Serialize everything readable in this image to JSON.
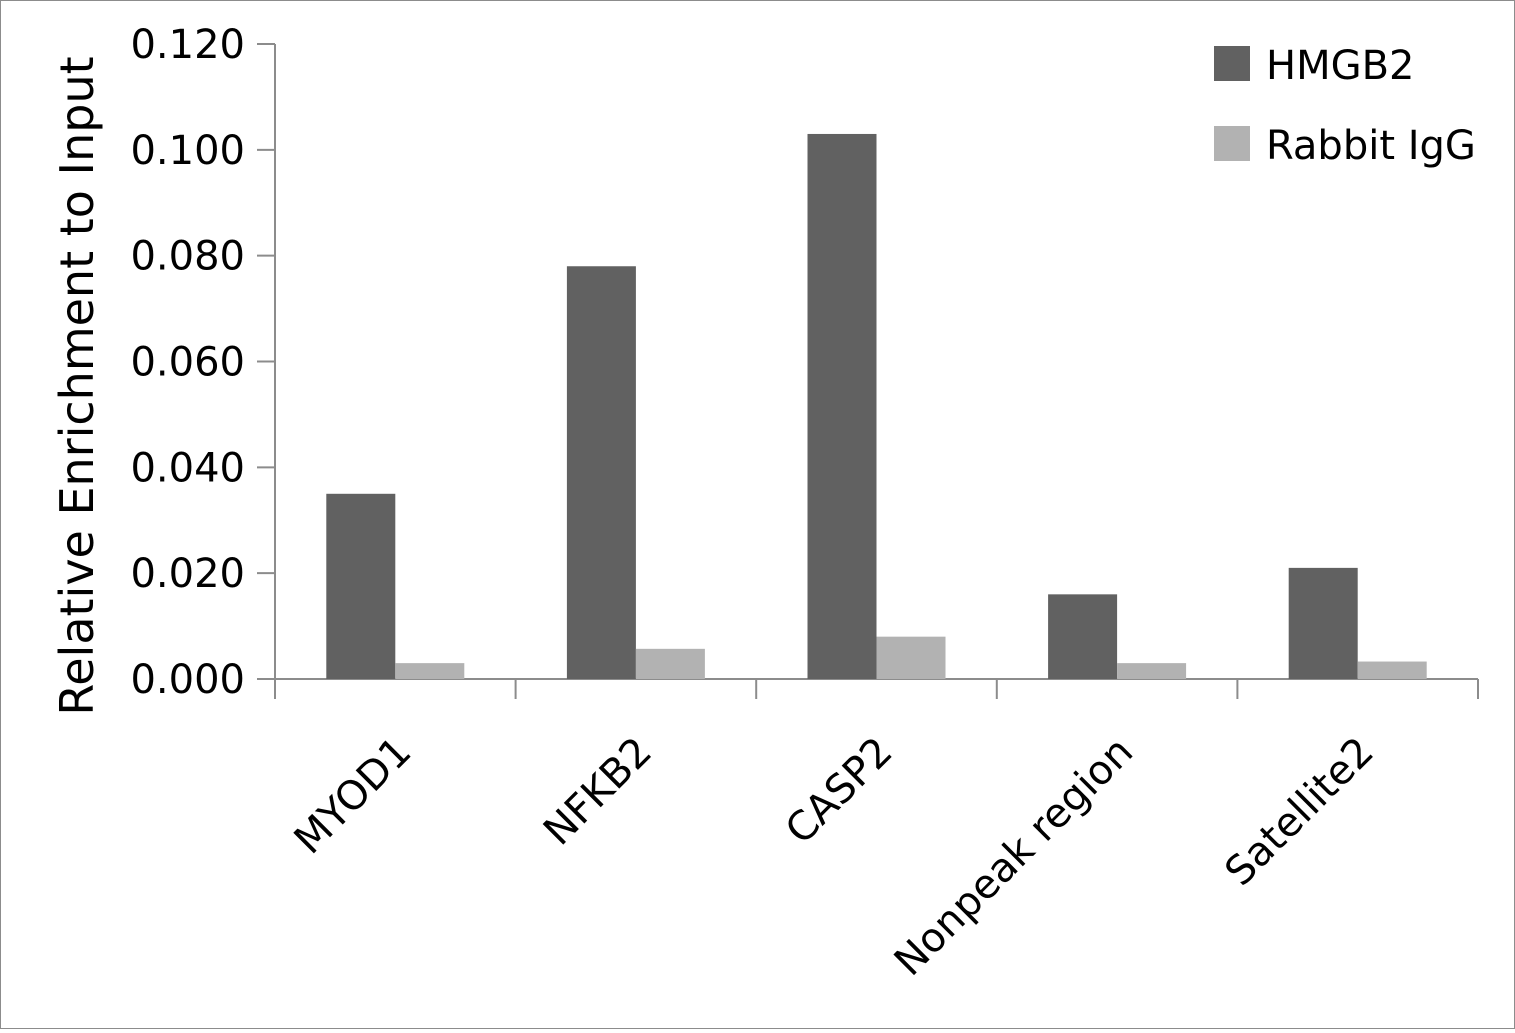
{
  "chart_data": {
    "type": "bar",
    "title": "",
    "xlabel": "",
    "ylabel": "Relative Enrichment to Input",
    "categories": [
      "MYOD1",
      "NFKB2",
      "CASP2",
      "Nonpeak region",
      "Satellite2"
    ],
    "series": [
      {
        "name": "HMGB2",
        "color": "#616161",
        "values": [
          0.035,
          0.078,
          0.103,
          0.016,
          0.021
        ]
      },
      {
        "name": "Rabbit IgG",
        "color": "#b2b2b2",
        "values": [
          0.003,
          0.0057,
          0.008,
          0.003,
          0.0033
        ]
      }
    ],
    "ylim": [
      0,
      0.12
    ],
    "yticks": [
      "0.000",
      "0.020",
      "0.040",
      "0.060",
      "0.080",
      "0.100",
      "0.120"
    ],
    "grid": false,
    "legend_position": "top-right"
  }
}
